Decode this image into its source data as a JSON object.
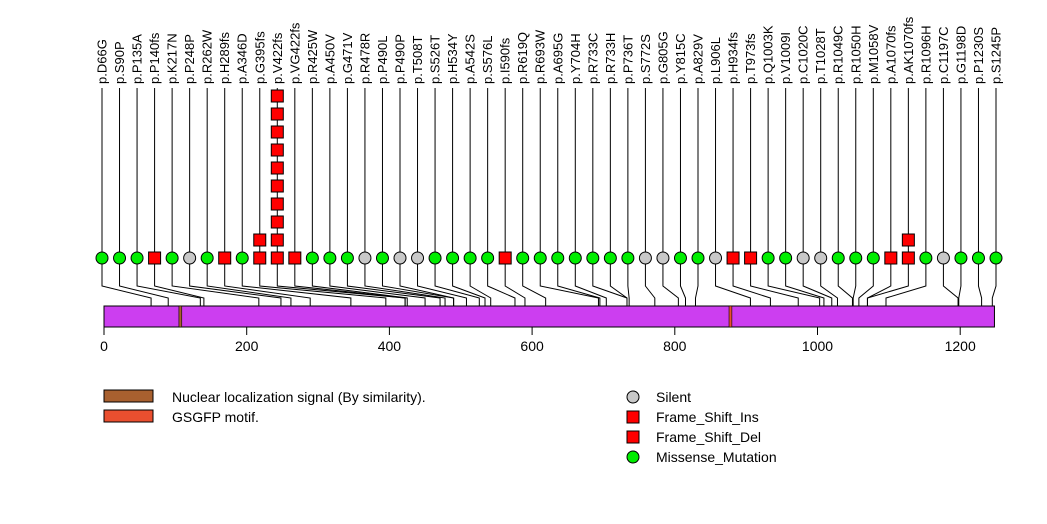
{
  "chart_data": {
    "type": "lollipop",
    "protein_length": 1248,
    "x_ticks": [
      0,
      200,
      400,
      600,
      800,
      1000,
      1200
    ],
    "colors": {
      "protein_bar": "#cc3ef0",
      "Silent": "#c8c8c8",
      "Frame_Shift_Ins": "#ff0000",
      "Frame_Shift_Del": "#ff0000",
      "Missense_Mutation": "#00ee00"
    },
    "domains": [
      {
        "name": "Nuclear localization signal (By similarity).",
        "start": 105,
        "end": 109,
        "color": "#a8602f"
      },
      {
        "name": "GSGFP motif.",
        "start": 876,
        "end": 880,
        "color": "#ea4f2f"
      }
    ],
    "mutations": [
      {
        "label": "p.D66G",
        "pos": 66,
        "type": "Missense_Mutation",
        "count": 1
      },
      {
        "label": "p.S90P",
        "pos": 90,
        "type": "Missense_Mutation",
        "count": 1
      },
      {
        "label": "p.P135A",
        "pos": 135,
        "type": "Missense_Mutation",
        "count": 1
      },
      {
        "label": "p.P140fs",
        "pos": 140,
        "type": "Frame_Shift_Del",
        "count": 1
      },
      {
        "label": "p.K217N",
        "pos": 217,
        "type": "Missense_Mutation",
        "count": 1
      },
      {
        "label": "p.P248P",
        "pos": 248,
        "type": "Silent",
        "count": 1
      },
      {
        "label": "p.R262W",
        "pos": 262,
        "type": "Missense_Mutation",
        "count": 1
      },
      {
        "label": "p.H289fs",
        "pos": 289,
        "type": "Frame_Shift_Del",
        "count": 1
      },
      {
        "label": "p.A346D",
        "pos": 346,
        "type": "Missense_Mutation",
        "count": 1
      },
      {
        "label": "p.G395fs",
        "pos": 395,
        "type": "Frame_Shift_Del",
        "count": 2
      },
      {
        "label": "p.V422fs",
        "pos": 422,
        "type": "Frame_Shift_Del",
        "count": 10
      },
      {
        "label": "p.VG422fs",
        "pos": 422,
        "type": "Frame_Shift_Ins",
        "count": 1
      },
      {
        "label": "p.R425W",
        "pos": 425,
        "type": "Missense_Mutation",
        "count": 1
      },
      {
        "label": "p.A450V",
        "pos": 450,
        "type": "Missense_Mutation",
        "count": 1
      },
      {
        "label": "p.G471V",
        "pos": 471,
        "type": "Missense_Mutation",
        "count": 1
      },
      {
        "label": "p.R478R",
        "pos": 478,
        "type": "Silent",
        "count": 1
      },
      {
        "label": "p.P490L",
        "pos": 490,
        "type": "Missense_Mutation",
        "count": 1
      },
      {
        "label": "p.P490P",
        "pos": 490,
        "type": "Silent",
        "count": 1
      },
      {
        "label": "p.T508T",
        "pos": 508,
        "type": "Silent",
        "count": 1
      },
      {
        "label": "p.S526T",
        "pos": 526,
        "type": "Missense_Mutation",
        "count": 1
      },
      {
        "label": "p.H534Y",
        "pos": 534,
        "type": "Missense_Mutation",
        "count": 1
      },
      {
        "label": "p.A542S",
        "pos": 542,
        "type": "Missense_Mutation",
        "count": 1
      },
      {
        "label": "p.S576L",
        "pos": 576,
        "type": "Missense_Mutation",
        "count": 1
      },
      {
        "label": "p.I590fs",
        "pos": 590,
        "type": "Frame_Shift_Del",
        "count": 1
      },
      {
        "label": "p.R619Q",
        "pos": 619,
        "type": "Missense_Mutation",
        "count": 1
      },
      {
        "label": "p.R693W",
        "pos": 693,
        "type": "Missense_Mutation",
        "count": 1
      },
      {
        "label": "p.A695G",
        "pos": 695,
        "type": "Missense_Mutation",
        "count": 1
      },
      {
        "label": "p.Y704H",
        "pos": 704,
        "type": "Missense_Mutation",
        "count": 1
      },
      {
        "label": "p.R733C",
        "pos": 733,
        "type": "Missense_Mutation",
        "count": 1
      },
      {
        "label": "p.R733H",
        "pos": 733,
        "type": "Missense_Mutation",
        "count": 1
      },
      {
        "label": "p.P736T",
        "pos": 736,
        "type": "Missense_Mutation",
        "count": 1
      },
      {
        "label": "p.S772S",
        "pos": 772,
        "type": "Silent",
        "count": 1
      },
      {
        "label": "p.G805G",
        "pos": 805,
        "type": "Silent",
        "count": 1
      },
      {
        "label": "p.Y815C",
        "pos": 815,
        "type": "Missense_Mutation",
        "count": 1
      },
      {
        "label": "p.A829V",
        "pos": 829,
        "type": "Missense_Mutation",
        "count": 1
      },
      {
        "label": "p.L906L",
        "pos": 906,
        "type": "Silent",
        "count": 1
      },
      {
        "label": "p.H934fs",
        "pos": 934,
        "type": "Frame_Shift_Del",
        "count": 1
      },
      {
        "label": "p.T973fs",
        "pos": 973,
        "type": "Frame_Shift_Del",
        "count": 1
      },
      {
        "label": "p.Q1003K",
        "pos": 1003,
        "type": "Missense_Mutation",
        "count": 1
      },
      {
        "label": "p.V1009I",
        "pos": 1009,
        "type": "Missense_Mutation",
        "count": 1
      },
      {
        "label": "p.C1020C",
        "pos": 1020,
        "type": "Silent",
        "count": 1
      },
      {
        "label": "p.T1028T",
        "pos": 1028,
        "type": "Silent",
        "count": 1
      },
      {
        "label": "p.R1049C",
        "pos": 1049,
        "type": "Missense_Mutation",
        "count": 1
      },
      {
        "label": "p.R1050H",
        "pos": 1050,
        "type": "Missense_Mutation",
        "count": 1
      },
      {
        "label": "p.M1058V",
        "pos": 1058,
        "type": "Missense_Mutation",
        "count": 1
      },
      {
        "label": "p.A1070fs",
        "pos": 1070,
        "type": "Frame_Shift_Del",
        "count": 1
      },
      {
        "label": "p.AK1070fs",
        "pos": 1070,
        "type": "Frame_Shift_Ins",
        "count": 2
      },
      {
        "label": "p.R1096H",
        "pos": 1096,
        "type": "Missense_Mutation",
        "count": 1
      },
      {
        "label": "p.C1197C",
        "pos": 1197,
        "type": "Silent",
        "count": 1
      },
      {
        "label": "p.G1198D",
        "pos": 1198,
        "type": "Missense_Mutation",
        "count": 1
      },
      {
        "label": "p.P1230S",
        "pos": 1230,
        "type": "Missense_Mutation",
        "count": 1
      },
      {
        "label": "p.S1245P",
        "pos": 1245,
        "type": "Missense_Mutation",
        "count": 1
      }
    ],
    "legend_domains": [
      {
        "label": "Nuclear localization signal (By similarity).",
        "color": "#a8602f"
      },
      {
        "label": "GSGFP motif.",
        "color": "#ea4f2f"
      }
    ],
    "legend_mutations": [
      {
        "label": "Silent",
        "shape": "circle",
        "color": "#c8c8c8"
      },
      {
        "label": "Frame_Shift_Ins",
        "shape": "square",
        "color": "#ff0000"
      },
      {
        "label": "Frame_Shift_Del",
        "shape": "square",
        "color": "#ff0000"
      },
      {
        "label": "Missense_Mutation",
        "shape": "circle",
        "color": "#00ee00"
      }
    ]
  }
}
